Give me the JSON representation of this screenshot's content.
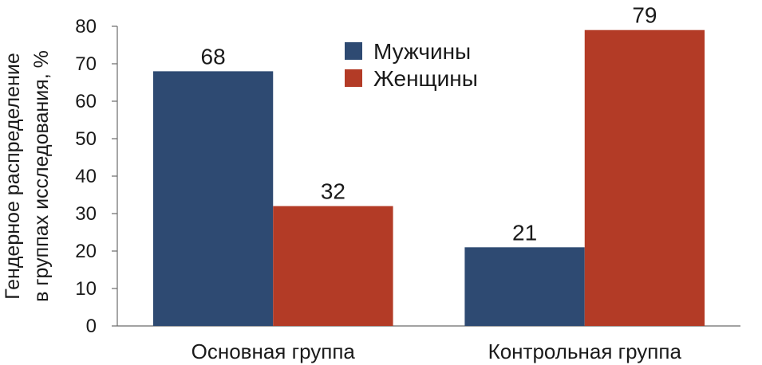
{
  "chart_data": {
    "type": "bar",
    "title": "",
    "xlabel": "",
    "ylabel_lines": [
      "Гендерное распределение",
      "в группах исследования, %"
    ],
    "categories": [
      "Основная группа",
      "Контрольная группа"
    ],
    "series": [
      {
        "name": "Мужчины",
        "color": "#2e4a72",
        "values": [
          68,
          21
        ]
      },
      {
        "name": "Женщины",
        "color": "#b33b26",
        "values": [
          32,
          79
        ]
      }
    ],
    "ylim": [
      0,
      80
    ],
    "yticks": [
      0,
      10,
      20,
      30,
      40,
      50,
      60,
      70,
      80
    ],
    "grid": false,
    "legend_position": "top-center"
  }
}
